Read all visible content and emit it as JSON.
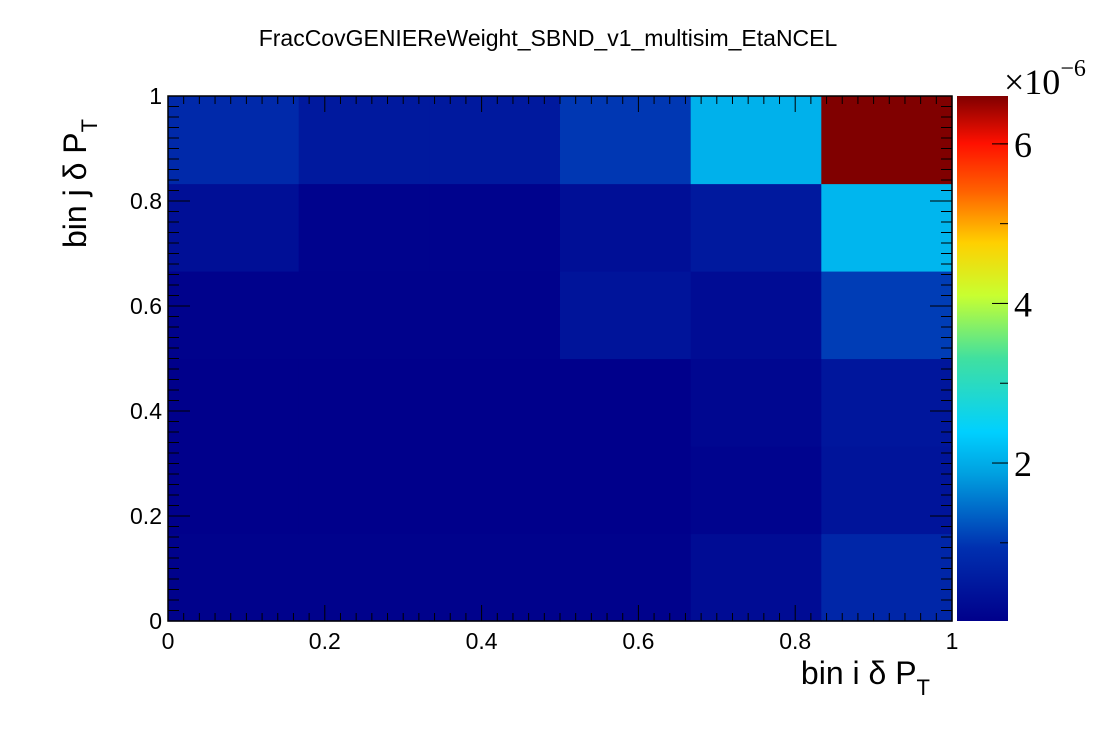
{
  "chart_data": {
    "type": "heatmap",
    "title": "FracCovGENIEReWeight_SBND_v1_multisim_EtaNCEL",
    "xlabel": {
      "main": "bin i δ P",
      "sub": "T"
    },
    "ylabel": {
      "main": "bin j δ P",
      "sub": "T"
    },
    "xlim": [
      0,
      1
    ],
    "ylim": [
      0,
      1
    ],
    "x_ticks": [
      "0",
      "0.2",
      "0.4",
      "0.6",
      "0.8",
      "1"
    ],
    "y_ticks": [
      "0",
      "0.2",
      "0.4",
      "0.6",
      "0.8",
      "1"
    ],
    "x_tick_values": [
      0,
      0.2,
      0.4,
      0.6,
      0.8,
      1
    ],
    "y_tick_values": [
      0,
      0.2,
      0.4,
      0.6,
      0.8,
      1
    ],
    "x_bins": 6,
    "y_bins": 6,
    "bin_edges_x": [
      0,
      0.1667,
      0.3333,
      0.5,
      0.6667,
      0.8333,
      1
    ],
    "bin_edges_y": [
      0,
      0.1667,
      0.3333,
      0.5,
      0.6667,
      0.8333,
      1
    ],
    "values_rows_bottom_to_top": [
      [
        0.05,
        0.05,
        0.05,
        0.05,
        0.25,
        0.75
      ],
      [
        0.02,
        0.02,
        0.02,
        0.02,
        0.1,
        0.4
      ],
      [
        0.02,
        0.02,
        0.02,
        0.02,
        0.15,
        0.45
      ],
      [
        0.05,
        0.05,
        0.05,
        0.4,
        0.25,
        1.05
      ],
      [
        0.3,
        0.08,
        0.08,
        0.3,
        0.5,
        2.1
      ],
      [
        0.8,
        0.5,
        0.5,
        1.0,
        2.05,
        6.6
      ]
    ],
    "colorbar": {
      "multiplier": "×10",
      "exponent": "−6",
      "range": [
        0.02,
        6.6
      ],
      "ticks": [
        "2",
        "4",
        "6"
      ],
      "tick_values": [
        2,
        4,
        6
      ],
      "palette": "rainbow (blue-cyan-green-yellow-red)"
    },
    "grid": false,
    "legend": "none"
  }
}
